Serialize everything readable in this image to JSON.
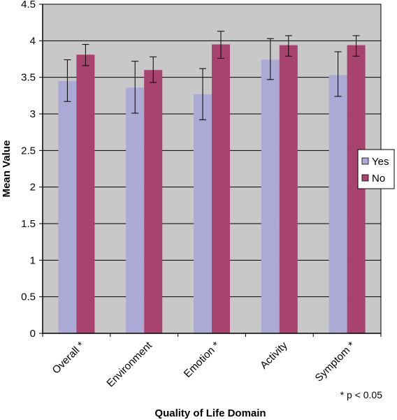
{
  "chart_data": {
    "type": "bar",
    "xlabel": "Quality of Life Domain",
    "ylabel": "Mean Value",
    "ylim": [
      0,
      4.5
    ],
    "ytick_step": 0.5,
    "yticks": [
      "0",
      "0.5",
      "1",
      "1.5",
      "2",
      "2.5",
      "3",
      "3.5",
      "4",
      "4.5"
    ],
    "categories": [
      "Overall *",
      "Environment",
      "Emotion *",
      "Activity",
      "Symptom *"
    ],
    "series": [
      {
        "name": "Yes",
        "color": "#aaaad4",
        "values": [
          3.45,
          3.36,
          3.27,
          3.74,
          3.53
        ],
        "err_low": [
          3.17,
          3.01,
          2.92,
          3.47,
          3.24
        ],
        "err_high": [
          3.74,
          3.72,
          3.62,
          4.03,
          3.85
        ]
      },
      {
        "name": "No",
        "color": "#a8426f",
        "values": [
          3.81,
          3.6,
          3.95,
          3.94,
          3.94
        ],
        "err_low": [
          3.66,
          3.43,
          3.76,
          3.79,
          3.79
        ],
        "err_high": [
          3.95,
          3.78,
          4.13,
          4.07,
          4.07
        ]
      }
    ],
    "grid": true,
    "plot_background": "#c8c8c8",
    "legend_position": "right",
    "annotation": "* p < 0.05"
  }
}
